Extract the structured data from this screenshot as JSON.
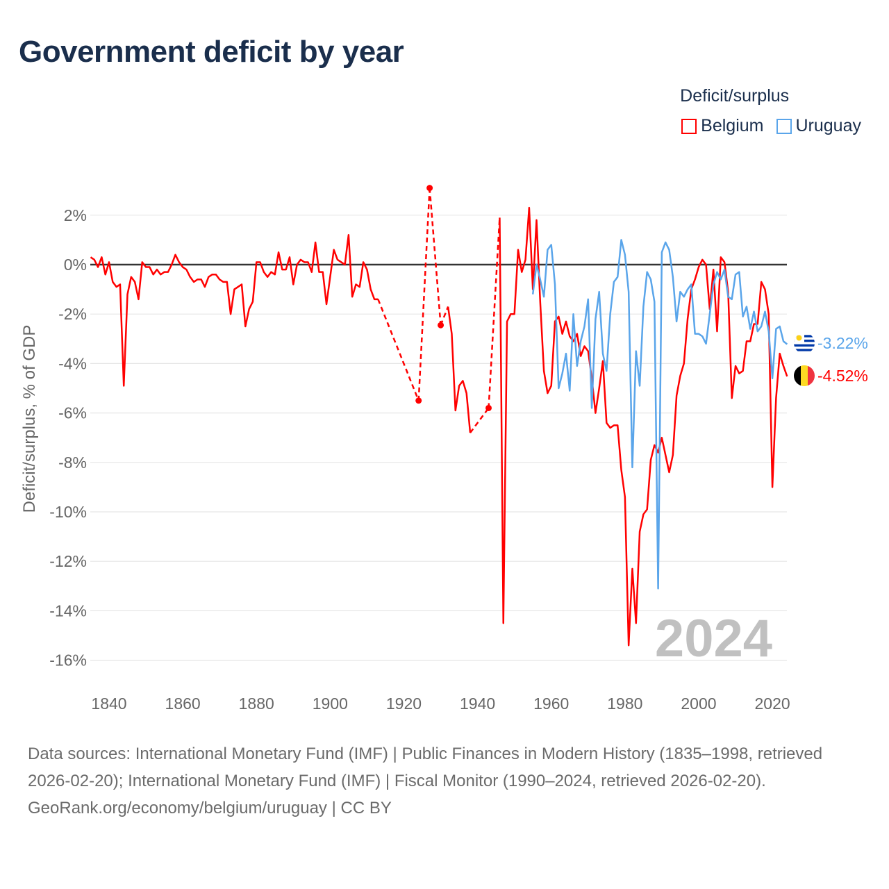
{
  "title": "Government deficit by year",
  "legend": {
    "title": "Deficit/surplus",
    "items": [
      {
        "name": "Belgium",
        "color": "#ff0000"
      },
      {
        "name": "Uruguay",
        "color": "#5aa5ea"
      }
    ]
  },
  "footer": {
    "sources": "Data sources: International Monetary Fund (IMF) | Public Finances in Modern History (1835–1998, retrieved 2026-02-20); International Monetary Fund (IMF) | Fiscal Monitor (1990–2024, retrieved 2026-02-20).",
    "credit": "GeoRank.org/economy/belgium/uruguay | CC BY"
  },
  "chart_data": {
    "type": "line",
    "title": "Government deficit by year",
    "xlabel": "",
    "ylabel": "Deficit/surplus, % of GDP",
    "xlim": [
      1835,
      2024
    ],
    "ylim": [
      -17,
      3.5
    ],
    "x_ticks": [
      1840,
      1860,
      1880,
      1900,
      1920,
      1940,
      1960,
      1980,
      2000,
      2020
    ],
    "y_ticks": [
      2,
      0,
      -2,
      -4,
      -6,
      -8,
      -10,
      -12,
      -14,
      -16
    ],
    "y_tick_labels": [
      "2%",
      "0%",
      "-2%",
      "-4%",
      "-6%",
      "-8%",
      "-10%",
      "-12%",
      "-14%",
      "-16%"
    ],
    "year_watermark": "2024",
    "grid": true,
    "legend_position": "top-right",
    "series": [
      {
        "name": "Belgium",
        "color": "#ff0000",
        "end_label": "-4.52%",
        "segments": [
          [
            [
              1835,
              0.3
            ],
            [
              1836,
              0.2
            ],
            [
              1837,
              -0.1
            ],
            [
              1838,
              0.3
            ],
            [
              1839,
              -0.4
            ],
            [
              1840,
              0.1
            ],
            [
              1841,
              -0.7
            ],
            [
              1842,
              -0.9
            ],
            [
              1843,
              -0.8
            ],
            [
              1844,
              -4.9
            ],
            [
              1845,
              -1.2
            ],
            [
              1846,
              -0.5
            ],
            [
              1847,
              -0.7
            ],
            [
              1848,
              -1.4
            ],
            [
              1849,
              0.1
            ],
            [
              1850,
              -0.1
            ],
            [
              1851,
              -0.1
            ],
            [
              1852,
              -0.4
            ],
            [
              1853,
              -0.2
            ],
            [
              1854,
              -0.4
            ],
            [
              1855,
              -0.3
            ],
            [
              1856,
              -0.3
            ],
            [
              1857,
              0.0
            ],
            [
              1858,
              0.4
            ],
            [
              1859,
              0.1
            ],
            [
              1860,
              -0.1
            ],
            [
              1861,
              -0.2
            ],
            [
              1862,
              -0.5
            ],
            [
              1863,
              -0.7
            ],
            [
              1864,
              -0.6
            ],
            [
              1865,
              -0.6
            ],
            [
              1866,
              -0.9
            ],
            [
              1867,
              -0.5
            ],
            [
              1868,
              -0.4
            ],
            [
              1869,
              -0.4
            ],
            [
              1870,
              -0.6
            ],
            [
              1871,
              -0.7
            ],
            [
              1872,
              -0.7
            ],
            [
              1873,
              -2.0
            ],
            [
              1874,
              -1.0
            ],
            [
              1875,
              -0.9
            ],
            [
              1876,
              -0.8
            ],
            [
              1877,
              -2.5
            ],
            [
              1878,
              -1.8
            ],
            [
              1879,
              -1.5
            ],
            [
              1880,
              0.1
            ],
            [
              1881,
              0.1
            ],
            [
              1882,
              -0.3
            ],
            [
              1883,
              -0.5
            ],
            [
              1884,
              -0.3
            ],
            [
              1885,
              -0.4
            ],
            [
              1886,
              0.5
            ],
            [
              1887,
              -0.2
            ],
            [
              1888,
              -0.2
            ],
            [
              1889,
              0.3
            ],
            [
              1890,
              -0.8
            ],
            [
              1891,
              0.0
            ],
            [
              1892,
              0.2
            ],
            [
              1893,
              0.1
            ],
            [
              1894,
              0.1
            ],
            [
              1895,
              -0.3
            ],
            [
              1896,
              0.9
            ],
            [
              1897,
              -0.3
            ],
            [
              1898,
              -0.3
            ],
            [
              1899,
              -1.6
            ],
            [
              1900,
              -0.5
            ],
            [
              1901,
              0.6
            ],
            [
              1902,
              0.2
            ],
            [
              1903,
              0.1
            ],
            [
              1904,
              0.0
            ],
            [
              1905,
              1.2
            ],
            [
              1906,
              -1.3
            ],
            [
              1907,
              -0.8
            ],
            [
              1908,
              -0.9
            ],
            [
              1909,
              0.1
            ],
            [
              1910,
              -0.2
            ],
            [
              1911,
              -1.0
            ],
            [
              1912,
              -1.4
            ],
            [
              1913,
              -1.4
            ]
          ],
          [
            [
              1924,
              -5.5
            ]
          ],
          [
            [
              1927,
              3.1
            ]
          ],
          [
            [
              1930,
              -2.45
            ]
          ],
          [
            [
              1932,
              -1.7
            ],
            [
              1933,
              -2.8
            ],
            [
              1934,
              -5.9
            ],
            [
              1935,
              -4.9
            ],
            [
              1936,
              -4.7
            ],
            [
              1937,
              -5.2
            ],
            [
              1938,
              -6.8
            ]
          ],
          [
            [
              1943,
              -5.8
            ]
          ],
          [
            [
              1946,
              1.9
            ],
            [
              1947,
              -14.5
            ],
            [
              1948,
              -2.3
            ],
            [
              1949,
              -2.0
            ],
            [
              1950,
              -2.0
            ],
            [
              1951,
              0.6
            ],
            [
              1952,
              -0.3
            ],
            [
              1953,
              0.2
            ],
            [
              1954,
              2.3
            ],
            [
              1955,
              -1.0
            ],
            [
              1956,
              1.8
            ],
            [
              1957,
              -1.5
            ],
            [
              1958,
              -4.3
            ],
            [
              1959,
              -5.2
            ],
            [
              1960,
              -4.9
            ],
            [
              1961,
              -2.3
            ],
            [
              1962,
              -2.1
            ],
            [
              1963,
              -2.8
            ],
            [
              1964,
              -2.3
            ],
            [
              1965,
              -2.9
            ],
            [
              1966,
              -3.1
            ],
            [
              1967,
              -2.8
            ],
            [
              1968,
              -3.7
            ],
            [
              1969,
              -3.3
            ],
            [
              1970,
              -3.5
            ],
            [
              1971,
              -4.6
            ],
            [
              1972,
              -6.0
            ],
            [
              1973,
              -5.0
            ],
            [
              1974,
              -3.9
            ],
            [
              1975,
              -6.4
            ],
            [
              1976,
              -6.6
            ],
            [
              1977,
              -6.5
            ],
            [
              1978,
              -6.5
            ],
            [
              1979,
              -8.3
            ],
            [
              1980,
              -9.4
            ],
            [
              1981,
              -15.4
            ],
            [
              1982,
              -12.3
            ],
            [
              1983,
              -14.5
            ],
            [
              1984,
              -10.8
            ],
            [
              1985,
              -10.1
            ],
            [
              1986,
              -9.9
            ],
            [
              1987,
              -7.9
            ],
            [
              1988,
              -7.3
            ],
            [
              1989,
              -7.6
            ],
            [
              1990,
              -7.0
            ],
            [
              1991,
              -7.7
            ],
            [
              1992,
              -8.4
            ],
            [
              1993,
              -7.7
            ],
            [
              1994,
              -5.3
            ],
            [
              1995,
              -4.5
            ],
            [
              1996,
              -4.0
            ],
            [
              1997,
              -2.2
            ],
            [
              1998,
              -1.0
            ],
            [
              1999,
              -0.6
            ],
            [
              2000,
              -0.1
            ],
            [
              2001,
              0.2
            ],
            [
              2002,
              0.0
            ],
            [
              2003,
              -1.8
            ],
            [
              2004,
              -0.2
            ],
            [
              2005,
              -2.7
            ],
            [
              2006,
              0.3
            ],
            [
              2007,
              0.1
            ],
            [
              2008,
              -1.1
            ],
            [
              2009,
              -5.4
            ],
            [
              2010,
              -4.1
            ],
            [
              2011,
              -4.4
            ],
            [
              2012,
              -4.3
            ],
            [
              2013,
              -3.1
            ],
            [
              2014,
              -3.1
            ],
            [
              2015,
              -2.4
            ],
            [
              2016,
              -2.4
            ],
            [
              2017,
              -0.7
            ],
            [
              2018,
              -1.0
            ],
            [
              2019,
              -2.0
            ],
            [
              2020,
              -9.0
            ],
            [
              2021,
              -5.4
            ],
            [
              2022,
              -3.6
            ],
            [
              2023,
              -4.1
            ],
            [
              2024,
              -4.52
            ]
          ]
        ]
      },
      {
        "name": "Uruguay",
        "color": "#5aa5ea",
        "end_label": "-3.22%",
        "segments": [
          [
            [
              1955,
              -1.2
            ],
            [
              1956,
              0.0
            ],
            [
              1957,
              -0.6
            ],
            [
              1958,
              -1.3
            ],
            [
              1959,
              0.6
            ],
            [
              1960,
              0.8
            ],
            [
              1961,
              -0.8
            ],
            [
              1962,
              -5.0
            ],
            [
              1963,
              -4.4
            ],
            [
              1964,
              -3.6
            ],
            [
              1965,
              -5.1
            ],
            [
              1966,
              -2.0
            ],
            [
              1967,
              -4.1
            ],
            [
              1968,
              -3.1
            ],
            [
              1969,
              -2.5
            ],
            [
              1970,
              -1.4
            ],
            [
              1971,
              -5.8
            ],
            [
              1972,
              -2.2
            ],
            [
              1973,
              -1.1
            ],
            [
              1974,
              -3.6
            ],
            [
              1975,
              -4.3
            ],
            [
              1976,
              -2.0
            ],
            [
              1977,
              -0.7
            ],
            [
              1978,
              -0.5
            ],
            [
              1979,
              1.0
            ],
            [
              1980,
              0.4
            ],
            [
              1981,
              -1.1
            ],
            [
              1982,
              -8.2
            ],
            [
              1983,
              -3.5
            ],
            [
              1984,
              -4.9
            ],
            [
              1985,
              -1.7
            ],
            [
              1986,
              -0.3
            ],
            [
              1987,
              -0.6
            ],
            [
              1988,
              -1.5
            ],
            [
              1989,
              -13.1
            ],
            [
              1990,
              0.5
            ],
            [
              1991,
              0.9
            ],
            [
              1992,
              0.6
            ],
            [
              1993,
              -0.5
            ],
            [
              1994,
              -2.3
            ],
            [
              1995,
              -1.1
            ],
            [
              1996,
              -1.3
            ],
            [
              1997,
              -1.0
            ],
            [
              1998,
              -0.8
            ],
            [
              1999,
              -2.8
            ],
            [
              2000,
              -2.8
            ],
            [
              2001,
              -2.9
            ],
            [
              2002,
              -3.2
            ],
            [
              2003,
              -2.0
            ],
            [
              2004,
              -0.8
            ],
            [
              2005,
              -0.3
            ],
            [
              2006,
              -0.6
            ],
            [
              2007,
              -0.2
            ],
            [
              2008,
              -1.3
            ],
            [
              2009,
              -1.4
            ],
            [
              2010,
              -0.4
            ],
            [
              2011,
              -0.3
            ],
            [
              2012,
              -2.1
            ],
            [
              2013,
              -1.7
            ],
            [
              2014,
              -2.6
            ],
            [
              2015,
              -1.9
            ],
            [
              2016,
              -2.7
            ],
            [
              2017,
              -2.5
            ],
            [
              2018,
              -1.9
            ],
            [
              2019,
              -2.7
            ],
            [
              2020,
              -4.6
            ],
            [
              2021,
              -2.6
            ],
            [
              2022,
              -2.5
            ],
            [
              2023,
              -3.1
            ],
            [
              2024,
              -3.22
            ]
          ]
        ]
      }
    ]
  }
}
